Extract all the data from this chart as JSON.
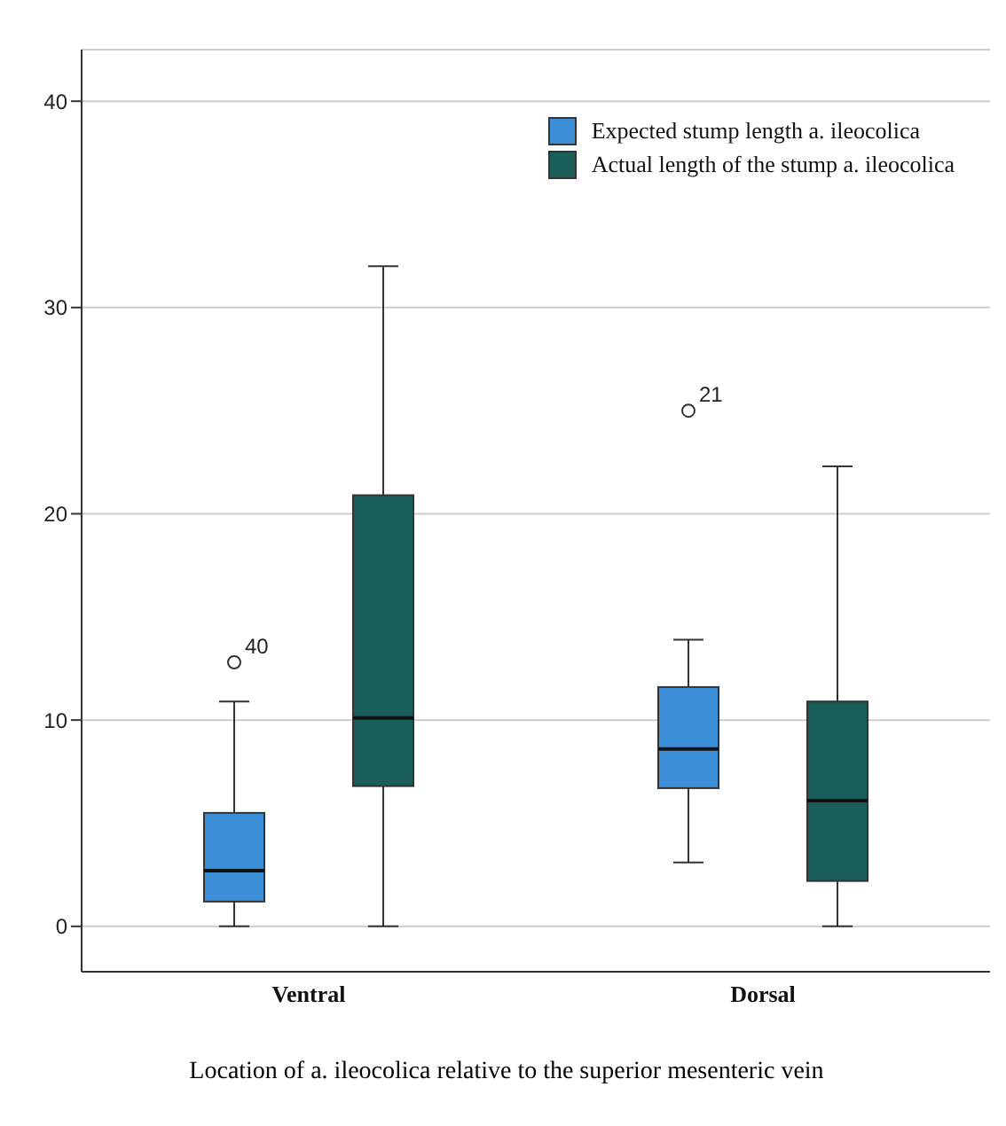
{
  "chart_data": {
    "type": "box",
    "xlabel": "Location of a. ileocolica relative to the superior mesenteric vein",
    "categories": [
      "Ventral",
      "Dorsal"
    ],
    "series": [
      {
        "name": "Expected stump length a. ileocolica",
        "color": "#3a8fd6",
        "boxes": [
          {
            "low": 0,
            "q1": 1.2,
            "median": 2.7,
            "q3": 5.5,
            "high": 10.9,
            "outliers": [
              12.8
            ]
          },
          {
            "low": 3.1,
            "q1": 6.7,
            "median": 8.6,
            "q3": 11.6,
            "high": 13.9,
            "outliers": [
              25
            ]
          }
        ]
      },
      {
        "name": "Actual length of the stump a. ileocolica",
        "color": "#1a5e5a",
        "boxes": [
          {
            "low": 0,
            "q1": 6.8,
            "median": 10.1,
            "q3": 20.9,
            "high": 32
          },
          {
            "low": 0,
            "q1": 2.2,
            "median": 6.1,
            "q3": 10.9,
            "high": 22.3
          }
        ]
      }
    ],
    "ylim": [
      -2.2,
      42.5
    ],
    "yticks": [
      0,
      10,
      20,
      30,
      40
    ],
    "grid": "y",
    "legend": "top right",
    "annotations": [
      "40",
      "21"
    ]
  }
}
